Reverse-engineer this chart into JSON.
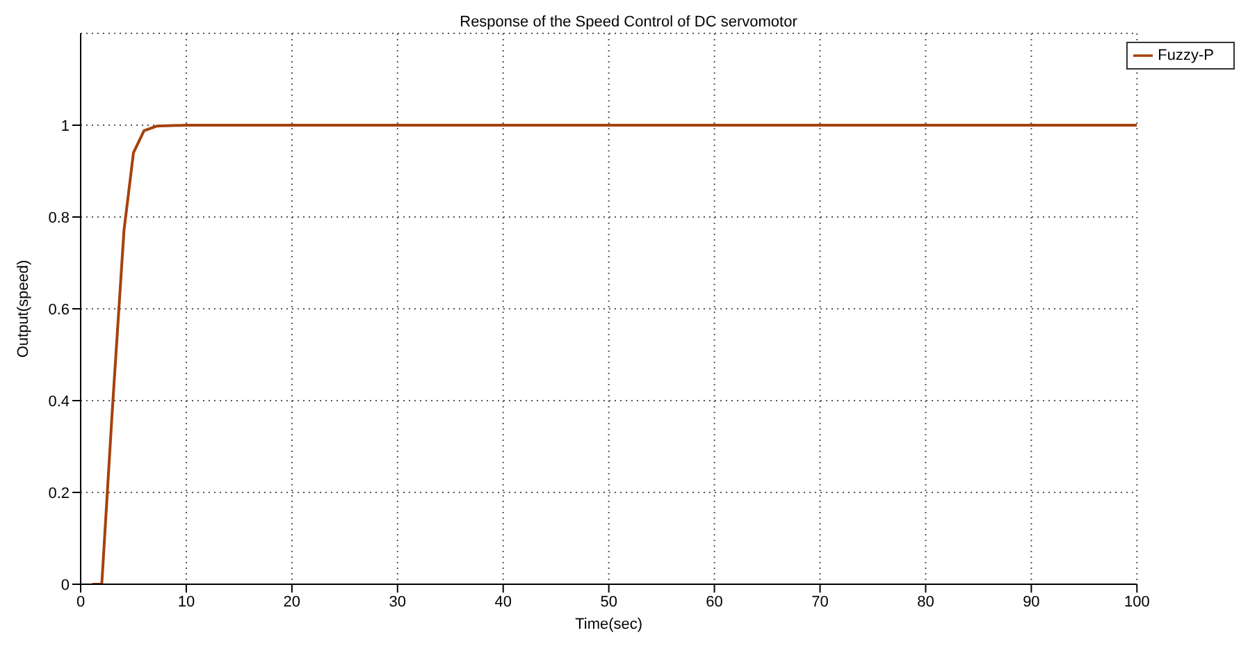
{
  "chart_data": {
    "type": "line",
    "title": "Response of the Speed Control of DC servomotor",
    "xlabel": "Time(sec)",
    "ylabel": "Output(speed)",
    "series": [
      {
        "name": "Fuzzy-P",
        "color": "#a6410c",
        "x": [
          1.1,
          2,
          3,
          4.1,
          5,
          6,
          7.2,
          10,
          100
        ],
        "values": [
          0,
          0,
          0.38,
          0.77,
          0.94,
          0.988,
          0.998,
          1,
          1
        ]
      }
    ],
    "xlim": [
      0,
      100
    ],
    "xticks": [
      0,
      10,
      20,
      30,
      40,
      50,
      60,
      70,
      80,
      90,
      100
    ],
    "ylim": [
      0,
      1.2
    ],
    "yticks": [
      0,
      0.2,
      0.4,
      0.6,
      0.8,
      1
    ],
    "grid": true,
    "legend": "top right",
    "marker": "none",
    "line_style": "solid"
  }
}
